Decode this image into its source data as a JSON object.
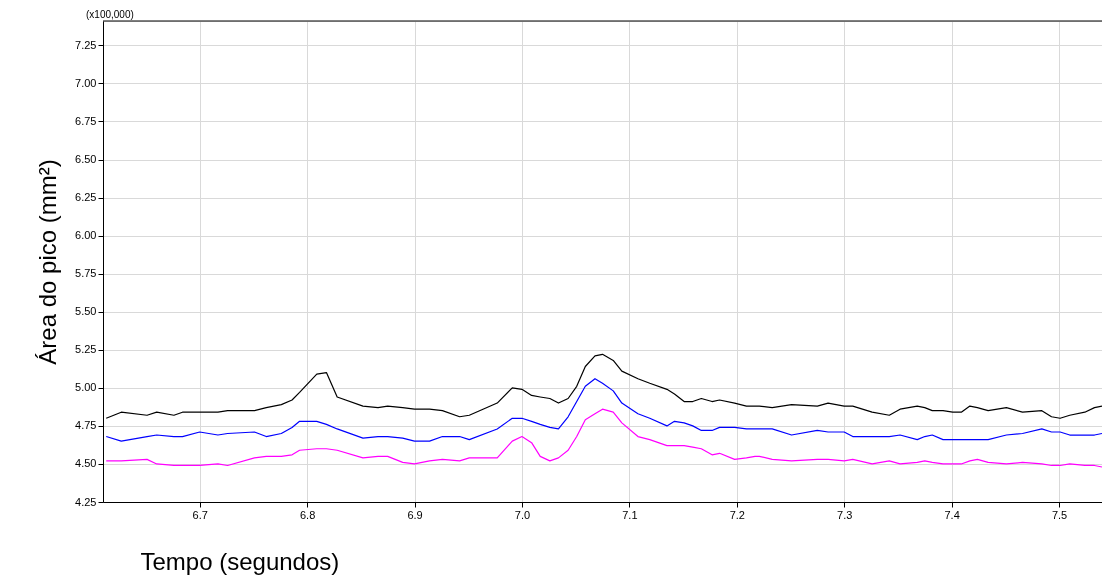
{
  "chart_data": {
    "type": "line",
    "xlabel": "Tempo (segundos)",
    "ylabel": "Área do pico (mm²)",
    "annotations": [
      "(x100,000)"
    ],
    "xlim": [
      6.61,
      7.54
    ],
    "ylim": [
      4.25,
      7.41
    ],
    "xticks": [
      6.7,
      6.8,
      6.9,
      {
        "value": 7.0,
        "label": "7.0"
      },
      7.1,
      7.2,
      7.3,
      7.4,
      7.5
    ],
    "yticks": [
      {
        "value": 4.25,
        "label": "4.25"
      },
      {
        "value": 4.5,
        "label": "4.50"
      },
      {
        "value": 4.75,
        "label": "4.75"
      },
      {
        "value": 5.0,
        "label": "5.00"
      },
      {
        "value": 5.25,
        "label": "5.25"
      },
      {
        "value": 5.5,
        "label": "5.50"
      },
      {
        "value": 5.75,
        "label": "5.75"
      },
      {
        "value": 6.0,
        "label": "6.00"
      },
      {
        "value": 6.25,
        "label": "6.25"
      },
      {
        "value": 6.5,
        "label": "6.50"
      },
      {
        "value": 6.75,
        "label": "6.75"
      },
      {
        "value": 7.0,
        "label": "7.00"
      },
      {
        "value": 7.25,
        "label": "7.25"
      }
    ],
    "grid": true,
    "x": [
      6.613,
      6.627,
      6.651,
      6.66,
      6.676,
      6.684,
      6.7,
      6.717,
      6.726,
      6.751,
      6.762,
      6.776,
      6.786,
      6.793,
      6.809,
      6.818,
      6.828,
      6.852,
      6.866,
      6.875,
      6.889,
      6.9,
      6.914,
      6.926,
      6.942,
      6.951,
      6.977,
      6.991,
      7.0,
      7.009,
      7.017,
      7.026,
      7.034,
      7.043,
      7.051,
      7.059,
      7.068,
      7.075,
      7.085,
      7.093,
      7.108,
      7.119,
      7.135,
      7.142,
      7.151,
      7.159,
      7.167,
      7.177,
      7.184,
      7.198,
      7.209,
      7.217,
      7.221,
      7.233,
      7.251,
      7.275,
      7.285,
      7.3,
      7.308,
      7.326,
      7.342,
      7.352,
      7.368,
      7.375,
      7.382,
      7.392,
      7.401,
      7.409,
      7.417,
      7.424,
      7.434,
      7.451,
      7.466,
      7.484,
      7.493,
      7.501,
      7.51,
      7.524,
      7.533,
      7.54
    ],
    "series": [
      {
        "color": "#000000",
        "values": [
          4.8,
          4.84,
          4.82,
          4.84,
          4.82,
          4.84,
          4.84,
          4.84,
          4.85,
          4.85,
          4.87,
          4.89,
          4.92,
          4.97,
          5.09,
          5.1,
          4.94,
          4.88,
          4.87,
          4.88,
          4.87,
          4.86,
          4.86,
          4.85,
          4.81,
          4.82,
          4.9,
          5.0,
          4.99,
          4.95,
          4.94,
          4.93,
          4.9,
          4.93,
          5.01,
          5.14,
          5.21,
          5.22,
          5.18,
          5.11,
          5.06,
          5.03,
          4.99,
          4.96,
          4.91,
          4.91,
          4.93,
          4.91,
          4.92,
          4.9,
          4.88,
          4.88,
          4.88,
          4.87,
          4.89,
          4.88,
          4.9,
          4.88,
          4.88,
          4.84,
          4.82,
          4.86,
          4.88,
          4.87,
          4.85,
          4.85,
          4.84,
          4.84,
          4.88,
          4.87,
          4.85,
          4.87,
          4.84,
          4.85,
          4.81,
          4.8,
          4.82,
          4.84,
          4.87,
          4.88
        ]
      },
      {
        "color": "#0000ff",
        "values": [
          4.68,
          4.65,
          4.68,
          4.69,
          4.68,
          4.68,
          4.71,
          4.69,
          4.7,
          4.71,
          4.68,
          4.7,
          4.74,
          4.78,
          4.78,
          4.76,
          4.73,
          4.67,
          4.68,
          4.68,
          4.67,
          4.65,
          4.65,
          4.68,
          4.68,
          4.66,
          4.73,
          4.8,
          4.8,
          4.78,
          4.76,
          4.74,
          4.73,
          4.81,
          4.91,
          5.01,
          5.06,
          5.03,
          4.98,
          4.9,
          4.83,
          4.8,
          4.75,
          4.78,
          4.77,
          4.75,
          4.72,
          4.72,
          4.74,
          4.74,
          4.73,
          4.73,
          4.73,
          4.73,
          4.69,
          4.72,
          4.71,
          4.71,
          4.68,
          4.68,
          4.68,
          4.69,
          4.66,
          4.68,
          4.69,
          4.66,
          4.66,
          4.66,
          4.66,
          4.66,
          4.66,
          4.69,
          4.7,
          4.73,
          4.71,
          4.71,
          4.69,
          4.69,
          4.69,
          4.7
        ]
      },
      {
        "color": "#ff00ff",
        "values": [
          4.52,
          4.52,
          4.53,
          4.5,
          4.49,
          4.49,
          4.49,
          4.5,
          4.49,
          4.54,
          4.55,
          4.55,
          4.56,
          4.59,
          4.6,
          4.6,
          4.59,
          4.54,
          4.55,
          4.55,
          4.51,
          4.5,
          4.52,
          4.53,
          4.52,
          4.54,
          4.54,
          4.65,
          4.68,
          4.64,
          4.55,
          4.52,
          4.54,
          4.59,
          4.68,
          4.79,
          4.83,
          4.86,
          4.84,
          4.77,
          4.68,
          4.66,
          4.62,
          4.62,
          4.62,
          4.61,
          4.6,
          4.56,
          4.57,
          4.53,
          4.54,
          4.55,
          4.55,
          4.53,
          4.52,
          4.53,
          4.53,
          4.52,
          4.53,
          4.5,
          4.52,
          4.5,
          4.51,
          4.52,
          4.51,
          4.5,
          4.5,
          4.5,
          4.52,
          4.53,
          4.51,
          4.5,
          4.51,
          4.5,
          4.49,
          4.49,
          4.5,
          4.49,
          4.49,
          4.48
        ]
      }
    ]
  }
}
